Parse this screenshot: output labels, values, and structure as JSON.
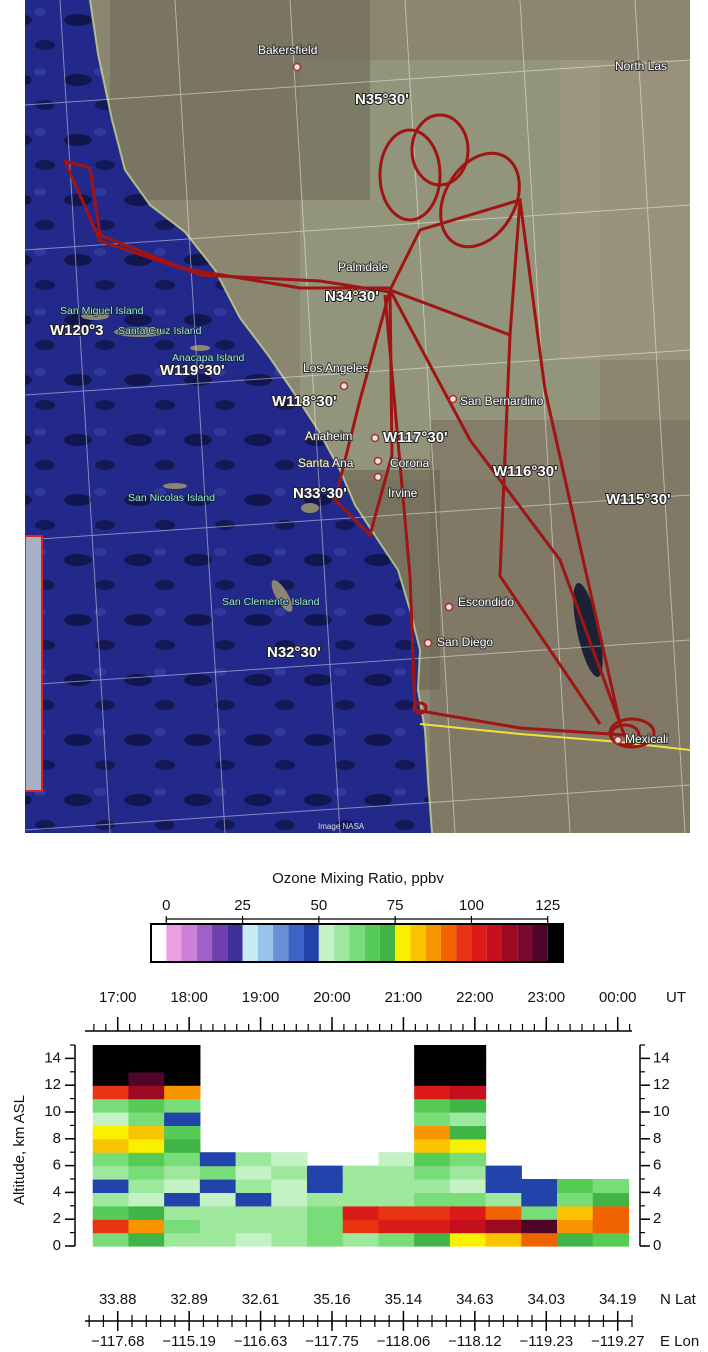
{
  "map": {
    "cities": [
      "Bakersfield",
      "North Las",
      "Palmdale",
      "Los Angeles",
      "San Bernardino",
      "Anaheim",
      "Santa Ana",
      "Corona",
      "Irvine",
      "Escondido",
      "San Diego",
      "Mexicali"
    ],
    "islands": [
      "San Miguel Island",
      "Santa Cruz Island",
      "Anacapa Island",
      "San Nicolas Island",
      "San Clemente Island"
    ],
    "grid_labels": [
      "N35°30'",
      "N34°30'",
      "W120°3",
      "W119°30'",
      "W118°30'",
      "W117°30'",
      "W116°30'",
      "N33°30'",
      "W115°30'",
      "N32°30'"
    ],
    "credit": "Image NASA"
  },
  "chart_data": [
    {
      "type": "colorbar",
      "title": "Ozone Mixing Ratio, ppbv",
      "bins": [
        -5,
        0,
        5,
        10,
        15,
        20,
        25,
        30,
        35,
        40,
        45,
        50,
        55,
        60,
        65,
        70,
        75,
        80,
        85,
        90,
        95,
        100,
        105,
        110,
        115,
        120,
        125,
        130
      ],
      "colors": [
        "#ffffff",
        "#eaa0e2",
        "#cc80d8",
        "#a060c8",
        "#7040b0",
        "#40309c",
        "#c8ecf6",
        "#98c4ea",
        "#6890d4",
        "#3c64c4",
        "#2244aa",
        "#c4f2c4",
        "#9ee89e",
        "#78dc78",
        "#56cc56",
        "#40b446",
        "#f8f000",
        "#f8c400",
        "#f89400",
        "#f06400",
        "#e83412",
        "#dc1a18",
        "#c4101c",
        "#9c0a22",
        "#7c0830",
        "#50062a",
        "#000000"
      ],
      "xlim": [
        -5,
        130
      ],
      "xticks": [
        0,
        25,
        50,
        75,
        100,
        125
      ]
    },
    {
      "type": "heatmap",
      "xlabel": "UT",
      "xlim": [
        16.5,
        24.2
      ],
      "xticks": [
        {
          "value": 17,
          "label": "17:00"
        },
        {
          "value": 18,
          "label": "18:00"
        },
        {
          "value": 19,
          "label": "19:00"
        },
        {
          "value": 20,
          "label": "20:00"
        },
        {
          "value": 21,
          "label": "21:00"
        },
        {
          "value": 22,
          "label": "22:00"
        },
        {
          "value": 23,
          "label": "23:00"
        },
        {
          "value": 24,
          "label": "00:00"
        }
      ],
      "ylabel": "Altitude, km ASL",
      "ylim": [
        0,
        15
      ],
      "yticks": [
        0,
        2,
        4,
        6,
        8,
        10,
        12,
        14
      ],
      "xbins": [
        16.65,
        17.15,
        17.65,
        18.15,
        18.65,
        19.15,
        19.65,
        20.15,
        20.65,
        21.15,
        21.65,
        22.15,
        22.65,
        23.15,
        23.65,
        24.15
      ],
      "ybins": [
        0,
        1,
        2,
        3,
        4,
        5,
        6,
        7,
        8,
        9,
        10,
        11,
        12,
        13,
        14,
        15
      ],
      "z": [
        [
          60,
          70,
          55,
          55,
          50,
          55,
          60,
          55,
          60,
          70,
          75,
          80,
          90,
          70,
          65
        ],
        [
          95,
          85,
          60,
          55,
          55,
          58,
          60,
          95,
          100,
          100,
          105,
          110,
          120,
          85,
          90
        ],
        [
          65,
          70,
          58,
          55,
          55,
          58,
          60,
          100,
          95,
          95,
          100,
          90,
          60,
          80,
          90
        ],
        [
          55,
          50,
          45,
          50,
          45,
          50,
          55,
          55,
          58,
          60,
          60,
          55,
          45,
          60,
          70
        ],
        [
          45,
          55,
          50,
          45,
          55,
          50,
          45,
          55,
          55,
          55,
          50,
          45,
          45,
          65,
          60
        ],
        [
          55,
          60,
          55,
          60,
          50,
          55,
          45,
          58,
          55,
          60,
          58,
          45,
          null,
          null,
          null
        ],
        [
          60,
          65,
          60,
          45,
          55,
          50,
          null,
          null,
          50,
          65,
          60,
          null,
          null,
          null,
          null
        ],
        [
          80,
          75,
          70,
          null,
          null,
          null,
          null,
          null,
          null,
          80,
          75,
          null,
          null,
          null,
          null
        ],
        [
          75,
          80,
          65,
          null,
          null,
          null,
          null,
          null,
          null,
          85,
          70,
          null,
          null,
          null,
          null
        ],
        [
          50,
          60,
          45,
          null,
          null,
          null,
          null,
          null,
          null,
          60,
          55,
          null,
          null,
          null,
          null
        ],
        [
          60,
          65,
          60,
          null,
          null,
          null,
          null,
          null,
          null,
          65,
          70,
          null,
          null,
          null,
          null
        ],
        [
          95,
          110,
          85,
          null,
          null,
          null,
          null,
          null,
          null,
          100,
          105,
          null,
          null,
          null,
          null
        ],
        [
          128,
          120,
          128,
          null,
          null,
          null,
          null,
          null,
          null,
          128,
          128,
          null,
          null,
          null,
          null
        ],
        [
          128,
          125,
          128,
          null,
          null,
          null,
          null,
          null,
          null,
          128,
          128,
          null,
          null,
          null,
          null
        ],
        [
          128,
          128,
          128,
          null,
          null,
          null,
          null,
          null,
          null,
          128,
          128,
          null,
          null,
          null,
          null
        ]
      ],
      "lat_label": "N Lat",
      "lat": [
        33.88,
        32.89,
        32.61,
        35.16,
        35.14,
        34.63,
        34.03,
        34.19
      ],
      "lon_label": "E Lon",
      "lon": [
        {
          "value": -117.68,
          "label": "−117.68"
        },
        {
          "value": -115.19,
          "label": "−115.19"
        },
        {
          "value": -116.63,
          "label": "−116.63"
        },
        {
          "value": -117.75,
          "label": "−117.75"
        },
        {
          "value": -118.06,
          "label": "−118.06"
        },
        {
          "value": -118.12,
          "label": "−118.12"
        },
        {
          "value": -119.23,
          "label": "−119.23"
        },
        {
          "value": -119.27,
          "label": "−119.27"
        }
      ]
    }
  ]
}
